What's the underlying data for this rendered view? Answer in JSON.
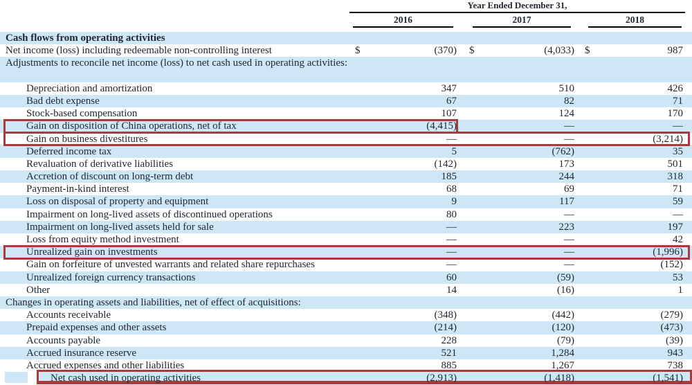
{
  "header": {
    "group_title": "Year Ended December 31,",
    "years": [
      "2016",
      "2017",
      "2018"
    ]
  },
  "table": {
    "currency_symbol": "$",
    "rows": [
      {
        "label": "Cash flows from operating activities",
        "section": true,
        "indent": 0,
        "bg": "blue",
        "values": [
          "",
          "",
          ""
        ]
      },
      {
        "label": "Net income (loss) including redeemable non-controlling interest",
        "indent": 0,
        "bg": "white",
        "dollar": true,
        "values": [
          "(370)",
          "(4,033)",
          "987"
        ]
      },
      {
        "label": "Adjustments to reconcile net income (loss) to net cash used in operating activities:",
        "indent": 0,
        "bg": "blue",
        "twoline": true,
        "values": [
          "",
          "",
          ""
        ]
      },
      {
        "label": "Depreciation and amortization",
        "indent": 1,
        "bg": "white",
        "values": [
          "347",
          "510",
          "426"
        ]
      },
      {
        "label": "Bad debt expense",
        "indent": 1,
        "bg": "blue",
        "values": [
          "67",
          "82",
          "71"
        ]
      },
      {
        "label": "Stock-based compensation",
        "indent": 1,
        "bg": "white",
        "values": [
          "107",
          "124",
          "170"
        ]
      },
      {
        "label": "Gain on disposition of China operations, net of tax",
        "indent": 1,
        "bg": "blue",
        "highlight": "label-col1",
        "values": [
          "(4,415)",
          "—",
          "—"
        ]
      },
      {
        "label": "Gain on business divestitures",
        "indent": 1,
        "bg": "white",
        "highlight": "full",
        "values": [
          "—",
          "—",
          "(3,214)"
        ]
      },
      {
        "label": "Deferred income tax",
        "indent": 1,
        "bg": "blue",
        "values": [
          "5",
          "(762)",
          "35"
        ]
      },
      {
        "label": "Revaluation of derivative liabilities",
        "indent": 1,
        "bg": "white",
        "values": [
          "(142)",
          "173",
          "501"
        ]
      },
      {
        "label": "Accretion of discount on long-term debt",
        "indent": 1,
        "bg": "blue",
        "values": [
          "185",
          "244",
          "318"
        ]
      },
      {
        "label": "Payment-in-kind interest",
        "indent": 1,
        "bg": "white",
        "values": [
          "68",
          "69",
          "71"
        ]
      },
      {
        "label": "Loss on disposal of property and equipment",
        "indent": 1,
        "bg": "blue",
        "values": [
          "9",
          "117",
          "59"
        ]
      },
      {
        "label": "Impairment on long-lived assets of discontinued operations",
        "indent": 1,
        "bg": "white",
        "values": [
          "80",
          "—",
          "—"
        ]
      },
      {
        "label": "Impairment on long-lived assets held for sale",
        "indent": 1,
        "bg": "blue",
        "values": [
          "—",
          "223",
          "197"
        ]
      },
      {
        "label": "Loss from equity method investment",
        "indent": 1,
        "bg": "white",
        "values": [
          "—",
          "—",
          "42"
        ]
      },
      {
        "label": "Unrealized gain on investments",
        "indent": 1,
        "bg": "blue",
        "highlight": "full",
        "values": [
          "—",
          "—",
          "(1,996)"
        ]
      },
      {
        "label": "Gain on forfeiture of unvested warrants and related share repurchases",
        "indent": 1,
        "bg": "white",
        "values": [
          "—",
          "—",
          "(152)"
        ]
      },
      {
        "label": "Unrealized foreign currency transactions",
        "indent": 1,
        "bg": "blue",
        "values": [
          "60",
          "(59)",
          "53"
        ]
      },
      {
        "label": "Other",
        "indent": 1,
        "bg": "white",
        "values": [
          "14",
          "(16)",
          "1"
        ]
      },
      {
        "label": "Changes in operating assets and liabilities, net of effect of acquisitions:",
        "indent": 0,
        "bg": "blue",
        "values": [
          "",
          "",
          ""
        ]
      },
      {
        "label": "Accounts receivable",
        "indent": 1,
        "bg": "white",
        "values": [
          "(348)",
          "(442)",
          "(279)"
        ]
      },
      {
        "label": "Prepaid expenses and other assets",
        "indent": 1,
        "bg": "blue",
        "values": [
          "(214)",
          "(120)",
          "(473)"
        ]
      },
      {
        "label": "Accounts payable",
        "indent": 1,
        "bg": "white",
        "values": [
          "228",
          "(79)",
          "(39)"
        ]
      },
      {
        "label": "Accrued insurance reserve",
        "indent": 1,
        "bg": "blue",
        "values": [
          "521",
          "1,284",
          "943"
        ]
      },
      {
        "label": "Accrued expenses and other liabilities",
        "indent": 1,
        "bg": "white",
        "values": [
          "885",
          "1,267",
          "738"
        ]
      },
      {
        "label": "Net cash used in operating activities",
        "indent": 2,
        "bg": "blue",
        "highlight": "net-box",
        "values": [
          "(2,913)",
          "(1,418)",
          "(1,541)"
        ]
      }
    ]
  },
  "colors": {
    "row_stripe_blue": "#cee7f6",
    "annotation_red": "#a93a3d",
    "text_ink": "#1f2630"
  }
}
